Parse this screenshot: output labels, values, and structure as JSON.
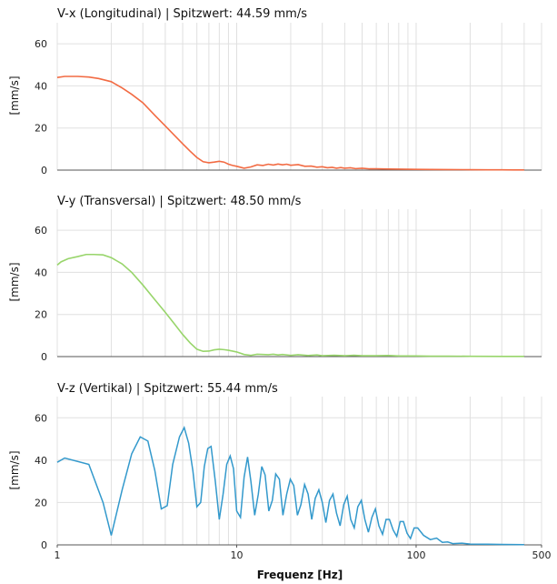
{
  "chart_data": [
    {
      "type": "line",
      "title": "V-x (Longitudinal) | Spitzwert: 44.59 mm/s",
      "ylabel": "[mm/s]",
      "xlabel": "",
      "xscale": "log",
      "xlim": [
        1,
        500
      ],
      "ylim": [
        0,
        70
      ],
      "yticks": [
        "0",
        "20",
        "40",
        "60"
      ],
      "grid": true,
      "color": "#f26b43",
      "series": [
        {
          "x": [
            1,
            1.1,
            1.3,
            1.5,
            1.7,
            2,
            2.3,
            2.6,
            3,
            3.5,
            4,
            4.5,
            5,
            5.5,
            6,
            6.5,
            7,
            7.5,
            8,
            8.5,
            9,
            9.5,
            10,
            11,
            12,
            13,
            14,
            15,
            16,
            17,
            18,
            19,
            20,
            22,
            24,
            26,
            28,
            30,
            32,
            34,
            36,
            38,
            40,
            43,
            46,
            50,
            55,
            60,
            70,
            80,
            90,
            100,
            120,
            150,
            200,
            250,
            300,
            350,
            400
          ],
          "y": [
            44,
            44.5,
            44.5,
            44.2,
            43.5,
            42,
            39,
            36,
            32,
            26,
            21,
            16.5,
            12.5,
            9,
            6,
            4,
            3.5,
            3.8,
            4.2,
            3.8,
            2.8,
            2.2,
            1.8,
            0.9,
            1.5,
            2.5,
            2.2,
            2.8,
            2.4,
            2.9,
            2.5,
            2.8,
            2.3,
            2.6,
            1.8,
            1.9,
            1.4,
            1.6,
            1.1,
            1.3,
            0.9,
            1.2,
            0.9,
            1.1,
            0.7,
            0.9,
            0.6,
            0.6,
            0.5,
            0.45,
            0.4,
            0.35,
            0.3,
            0.25,
            0.2,
            0.15,
            0.12,
            0.1,
            0.08
          ]
        }
      ]
    },
    {
      "type": "line",
      "title": "V-y (Transversal) | Spitzwert: 48.50 mm/s",
      "ylabel": "[mm/s]",
      "xlabel": "",
      "xscale": "log",
      "xlim": [
        1,
        500
      ],
      "ylim": [
        0,
        70
      ],
      "yticks": [
        "0",
        "20",
        "40",
        "60"
      ],
      "grid": true,
      "color": "#98d56b",
      "series": [
        {
          "x": [
            1,
            1.05,
            1.15,
            1.3,
            1.45,
            1.6,
            1.8,
            2,
            2.3,
            2.6,
            3,
            3.5,
            4,
            4.5,
            5,
            5.5,
            6,
            6.5,
            7,
            7.5,
            8,
            8.5,
            9,
            10,
            11,
            12,
            13,
            14,
            15,
            16,
            17,
            18,
            20,
            22,
            25,
            28,
            30,
            35,
            40,
            45,
            50,
            60,
            70,
            80,
            100,
            120,
            150,
            200,
            300,
            400
          ],
          "y": [
            43.5,
            45,
            46.5,
            47.5,
            48.5,
            48.5,
            48.3,
            47,
            44,
            40,
            34,
            27,
            21,
            15.5,
            10.5,
            6.5,
            3.5,
            2.5,
            2.6,
            3.2,
            3.5,
            3.3,
            3,
            2.2,
            1,
            0.6,
            1.1,
            1,
            0.9,
            1.1,
            0.8,
            1,
            0.6,
            0.9,
            0.5,
            0.8,
            0.4,
            0.6,
            0.4,
            0.6,
            0.4,
            0.4,
            0.5,
            0.3,
            0.3,
            0.2,
            0.2,
            0.15,
            0.1,
            0.1
          ]
        }
      ]
    },
    {
      "type": "line",
      "title": "V-z (Vertikal) | Spitzwert: 55.44 mm/s",
      "ylabel": "[mm/s]",
      "xlabel": "Frequenz [Hz]",
      "xscale": "log",
      "xlim": [
        1,
        500
      ],
      "ylim": [
        0,
        70
      ],
      "yticks": [
        "0",
        "20",
        "40",
        "60"
      ],
      "xticks": [
        "1",
        "10",
        "100",
        "500"
      ],
      "grid": true,
      "color": "#3399cc",
      "series": [
        {
          "x": [
            1,
            1.1,
            1.5,
            1.8,
            2.0,
            2.3,
            2.6,
            2.9,
            3.2,
            3.5,
            3.8,
            4.1,
            4.4,
            4.8,
            5.1,
            5.4,
            5.7,
            6.0,
            6.3,
            6.6,
            6.9,
            7.2,
            7.6,
            8.0,
            8.4,
            8.8,
            9.2,
            9.6,
            10.0,
            10.5,
            11.0,
            11.5,
            12.0,
            12.6,
            13.2,
            13.8,
            14.4,
            15.1,
            15.8,
            16.5,
            17.3,
            18.1,
            19.0,
            19.9,
            20.8,
            21.8,
            22.8,
            23.9,
            25.0,
            26.2,
            27.4,
            28.7,
            30.0,
            31.4,
            32.9,
            34.4,
            36.0,
            37.7,
            39.5,
            41.3,
            43.2,
            45.2,
            47.3,
            49.5,
            51.8,
            54.2,
            56.7,
            59.3,
            62.0,
            65.0,
            68.0,
            71.0,
            74.5,
            78.0,
            81.5,
            85.0,
            89.0,
            93.0,
            97.5,
            102.0,
            110,
            120,
            130,
            140,
            150,
            160,
            180,
            200,
            250,
            300,
            350,
            400
          ],
          "y": [
            39,
            41,
            38,
            20,
            4.5,
            26,
            43,
            51,
            49,
            35,
            17,
            18.5,
            38,
            51,
            55.4,
            48,
            35,
            18,
            20,
            37,
            45.5,
            46.5,
            30,
            12,
            24,
            38,
            42,
            36,
            16,
            13,
            32,
            41.5,
            30,
            14,
            24,
            37,
            33,
            16,
            21,
            33.5,
            31,
            14,
            24,
            31,
            28,
            14,
            19,
            28.5,
            24,
            12,
            22,
            26,
            20,
            10.5,
            21,
            24,
            15,
            9,
            19,
            23,
            12,
            8,
            18,
            21,
            12,
            6,
            13,
            17,
            9,
            5,
            12,
            12,
            7,
            4,
            11,
            11,
            5.5,
            3,
            8,
            8,
            4.5,
            2.5,
            3.2,
            1.2,
            1.4,
            0.6,
            0.8,
            0.4,
            0.3,
            0.2,
            0.15,
            0.1
          ]
        }
      ]
    }
  ]
}
